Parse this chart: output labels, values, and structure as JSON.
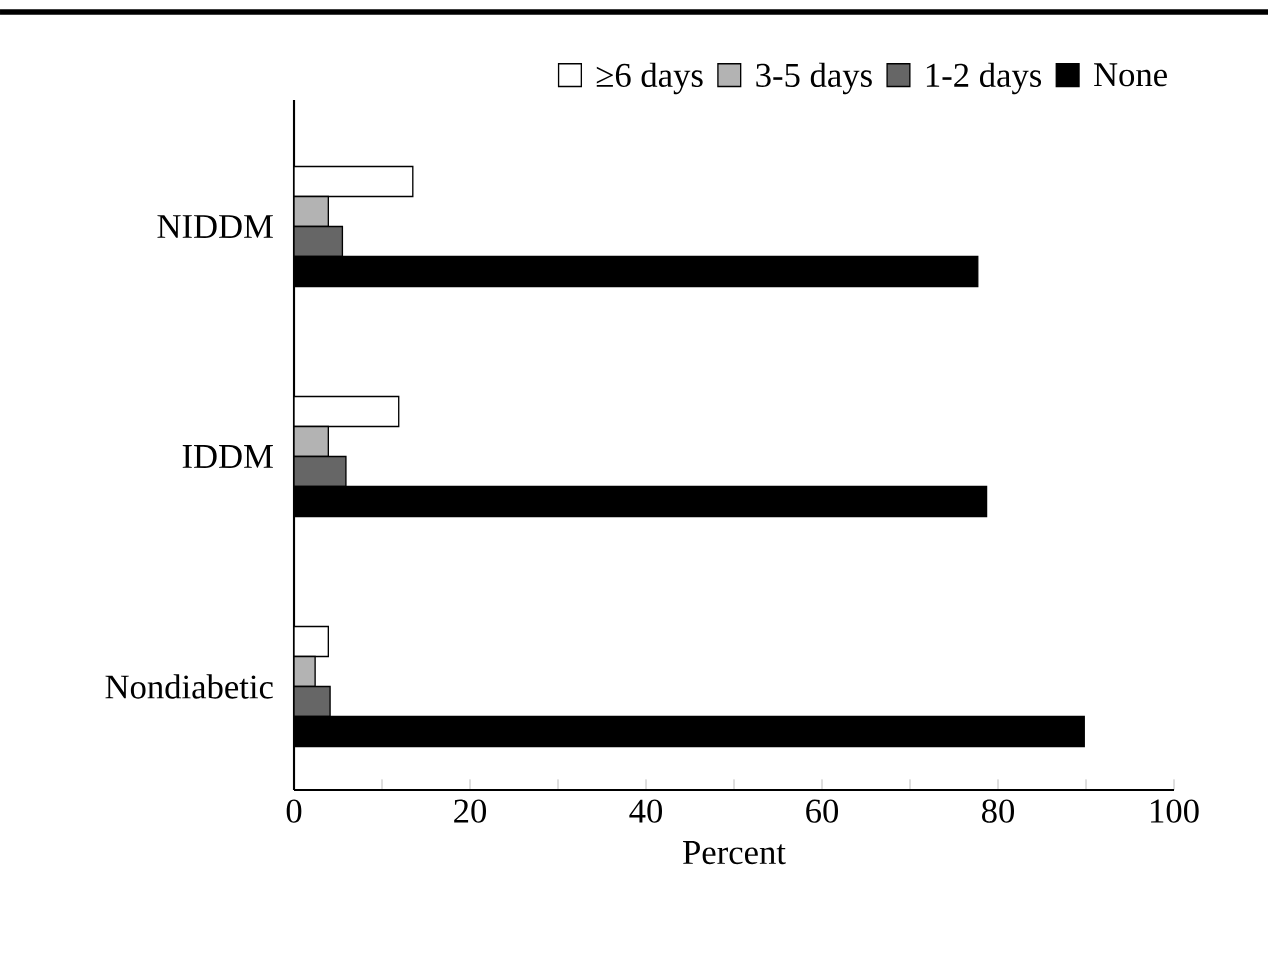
{
  "chart_data": {
    "type": "bar",
    "orientation": "horizontal",
    "xlabel": "Percent",
    "categories": [
      "NIDDM",
      "IDDM",
      "Nondiabetic"
    ],
    "series": [
      {
        "name": "≥6 days",
        "color": "#ffffff",
        "values": [
          13.5,
          11.9,
          3.9
        ]
      },
      {
        "name": "3-5 days",
        "color": "#b3b3b3",
        "values": [
          3.9,
          3.9,
          2.4
        ]
      },
      {
        "name": "1-2 days",
        "color": "#666666",
        "values": [
          5.5,
          5.9,
          4.1
        ]
      },
      {
        "name": "None",
        "color": "#000000",
        "values": [
          77.7,
          78.7,
          89.8
        ]
      }
    ],
    "xlim": [
      0,
      100
    ],
    "xticks": [
      0,
      {
        "value": 10,
        "label": null
      },
      20,
      {
        "value": 30,
        "label": null
      },
      40,
      {
        "value": 50,
        "label": null
      },
      60,
      {
        "value": 70,
        "label": null
      },
      80,
      {
        "value": 90,
        "label": null
      },
      100
    ],
    "legend": "top right"
  }
}
